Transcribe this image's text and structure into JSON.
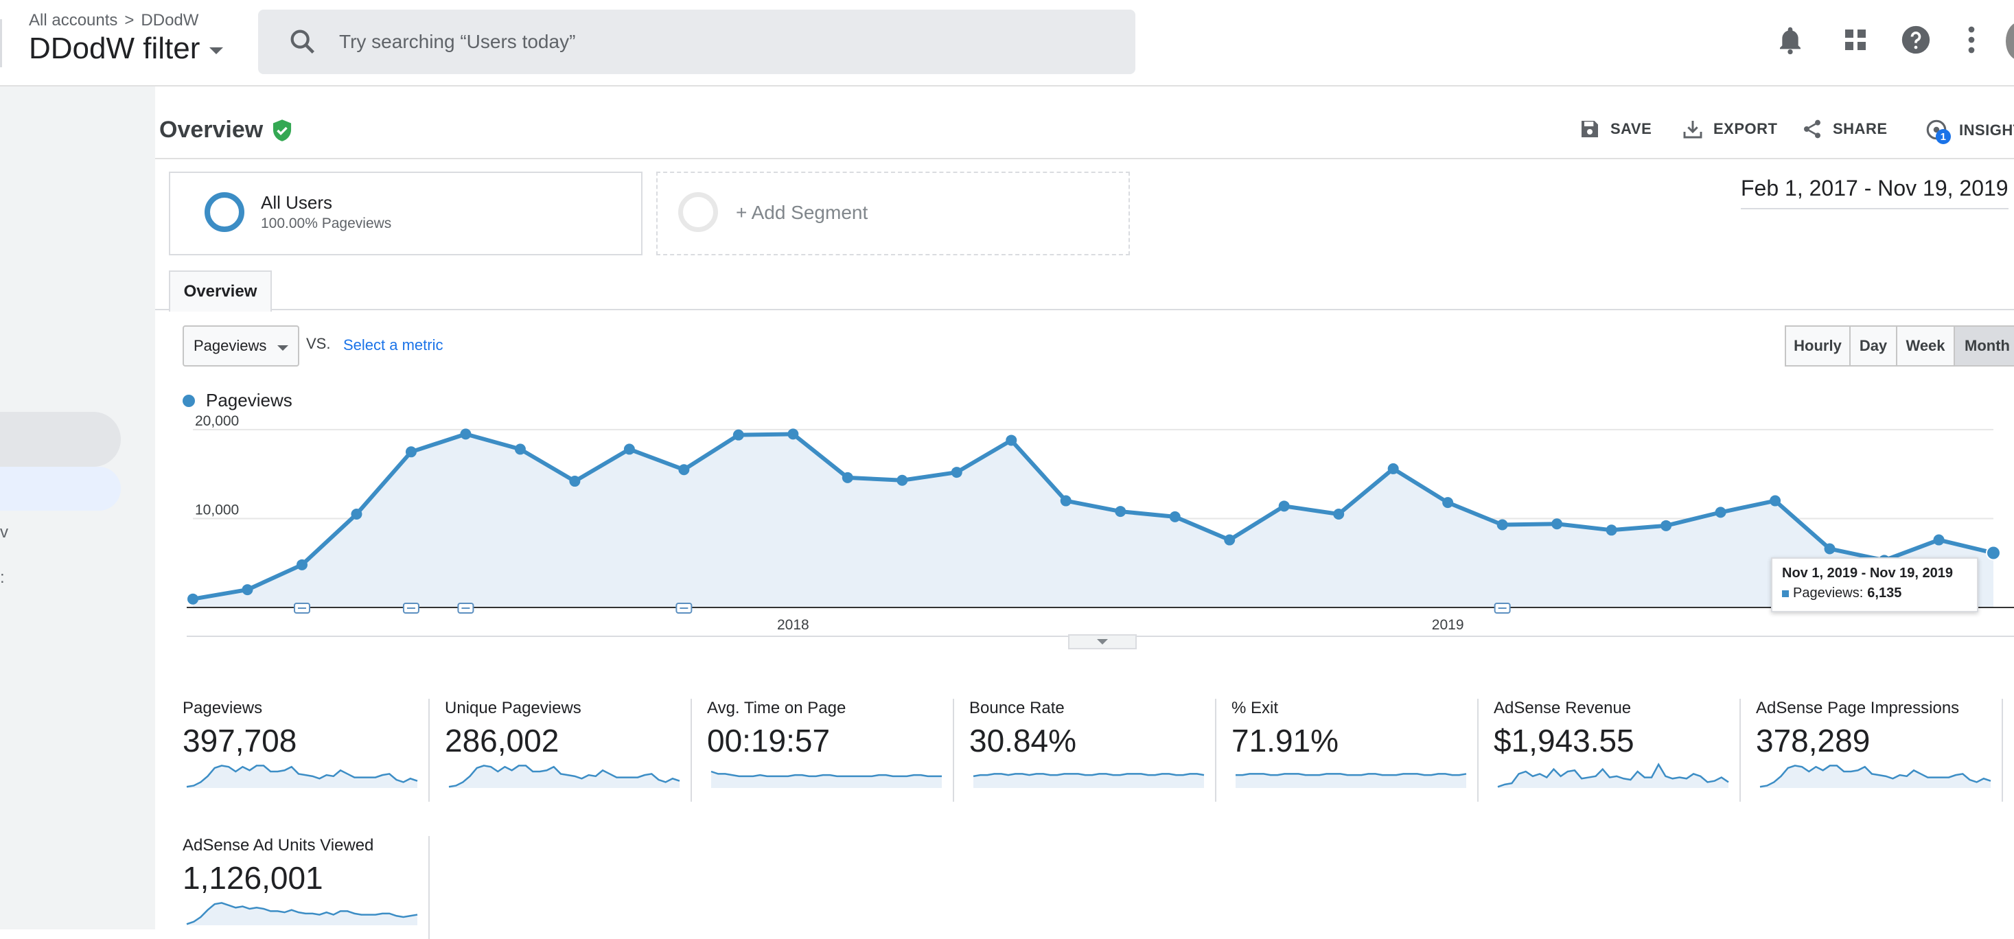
{
  "header": {
    "breadcrumb_root": "All accounts",
    "breadcrumb_sep": ">",
    "breadcrumb_account": "DDodW",
    "view_title": "DDodW filter",
    "search_placeholder": "Try searching “Users today”"
  },
  "page": {
    "title": "Overview",
    "actions": {
      "save": "SAVE",
      "export": "EXPORT",
      "share": "SHARE",
      "insights": "INSIGHTS",
      "insights_badge": "1"
    }
  },
  "segments": [
    {
      "name": "All Users",
      "sub": "100.00% Pageviews"
    },
    {
      "name": "+ Add Segment"
    }
  ],
  "date_range": "Feb 1, 2017 - Nov 19, 2019",
  "tabs": [
    "Overview"
  ],
  "metric_select": {
    "value": "Pageviews",
    "vs": "VS.",
    "select_metric": "Select a metric"
  },
  "granularity": {
    "options": [
      "Hourly",
      "Day",
      "Week",
      "Month"
    ],
    "selected": "Month"
  },
  "tooltip": {
    "date": "Nov 1, 2019 - Nov 19, 2019",
    "label": "Pageviews:",
    "value": "6,135"
  },
  "colors": {
    "series": "#3c8dc5",
    "fill": "#e8f0f8",
    "verified": "#34a853",
    "link": "#1a73e8"
  },
  "chart_data": {
    "type": "area",
    "series": [
      {
        "name": "Pageviews",
        "values": [
          950,
          2000,
          4800,
          10500,
          17500,
          19500,
          17800,
          14200,
          17800,
          15500,
          19400,
          19500,
          14600,
          14300,
          15200,
          18800,
          12000,
          10800,
          10200,
          7600,
          11400,
          10500,
          15600,
          11800,
          9300,
          9400,
          8700,
          9200,
          10700,
          12000,
          6600,
          5300,
          7600,
          6135
        ]
      }
    ],
    "x_start": "2017-02",
    "x_interval": "month",
    "x_tick_labels": [
      "2018",
      "2019"
    ],
    "y_ticks": [
      "20,000",
      "10,000"
    ],
    "ylim": [
      0,
      22000
    ],
    "annotation_months": [
      "2017-04",
      "2017-06",
      "2017-07",
      "2017-11",
      "2019-02"
    ],
    "grid": true
  },
  "metrics": [
    {
      "label": "Pageviews",
      "value": "397,708",
      "spark": [
        1,
        2,
        5,
        10,
        17,
        19,
        18,
        14,
        18,
        15,
        19,
        19,
        14,
        14,
        15,
        18,
        12,
        11,
        10,
        8,
        11,
        10,
        15,
        12,
        9,
        9,
        9,
        9,
        11,
        12,
        7,
        5,
        8,
        6
      ]
    },
    {
      "label": "Unique Pageviews",
      "value": "286,002",
      "spark": [
        1,
        2,
        5,
        10,
        17,
        19,
        18,
        14,
        18,
        15,
        19,
        19,
        14,
        14,
        15,
        18,
        12,
        11,
        10,
        8,
        11,
        10,
        15,
        12,
        9,
        9,
        9,
        9,
        11,
        12,
        7,
        5,
        8,
        6
      ]
    },
    {
      "label": "Avg. Time on Page",
      "value": "00:19:57",
      "spark": [
        14,
        12,
        12,
        11,
        10,
        10,
        10,
        11,
        10,
        10,
        10,
        10,
        11,
        11,
        10,
        10,
        11,
        11,
        10,
        10,
        10,
        10,
        10,
        10,
        11,
        11,
        10,
        10,
        10,
        11,
        11,
        10,
        10,
        10
      ]
    },
    {
      "label": "Bounce Rate",
      "value": "30.84%",
      "spark": [
        10,
        11,
        11,
        12,
        12,
        11,
        12,
        12,
        11,
        12,
        12,
        11,
        11,
        12,
        12,
        12,
        11,
        11,
        12,
        12,
        11,
        11,
        12,
        12,
        12,
        11,
        11,
        12,
        12,
        11,
        11,
        12,
        12,
        11
      ]
    },
    {
      "label": "% Exit",
      "value": "71.91%",
      "spark": [
        11,
        11,
        12,
        12,
        12,
        11,
        11,
        12,
        12,
        12,
        11,
        11,
        11,
        12,
        12,
        12,
        11,
        11,
        11,
        12,
        12,
        11,
        11,
        11,
        12,
        12,
        12,
        11,
        11,
        12,
        12,
        11,
        11,
        12
      ]
    },
    {
      "label": "AdSense Revenue",
      "value": "$1,943.55",
      "spark": [
        1,
        3,
        4,
        12,
        14,
        10,
        12,
        9,
        16,
        10,
        14,
        15,
        8,
        9,
        10,
        16,
        9,
        10,
        8,
        7,
        14,
        9,
        9,
        20,
        10,
        8,
        9,
        8,
        12,
        10,
        5,
        6,
        9,
        5
      ]
    },
    {
      "label": "AdSense Page Impressions",
      "value": "378,289",
      "spark": [
        1,
        2,
        5,
        10,
        17,
        19,
        18,
        14,
        18,
        15,
        19,
        19,
        14,
        14,
        15,
        18,
        12,
        11,
        10,
        8,
        11,
        10,
        15,
        12,
        9,
        9,
        9,
        9,
        11,
        12,
        7,
        5,
        8,
        6
      ]
    },
    {
      "label": "AdSense Ad Units Viewed",
      "value": "1,126,001",
      "spark": [
        1,
        3,
        7,
        13,
        18,
        19,
        17,
        15,
        16,
        14,
        15,
        14,
        12,
        12,
        11,
        13,
        11,
        10,
        10,
        9,
        11,
        9,
        12,
        12,
        10,
        9,
        9,
        9,
        10,
        10,
        8,
        7,
        8,
        9
      ]
    }
  ]
}
